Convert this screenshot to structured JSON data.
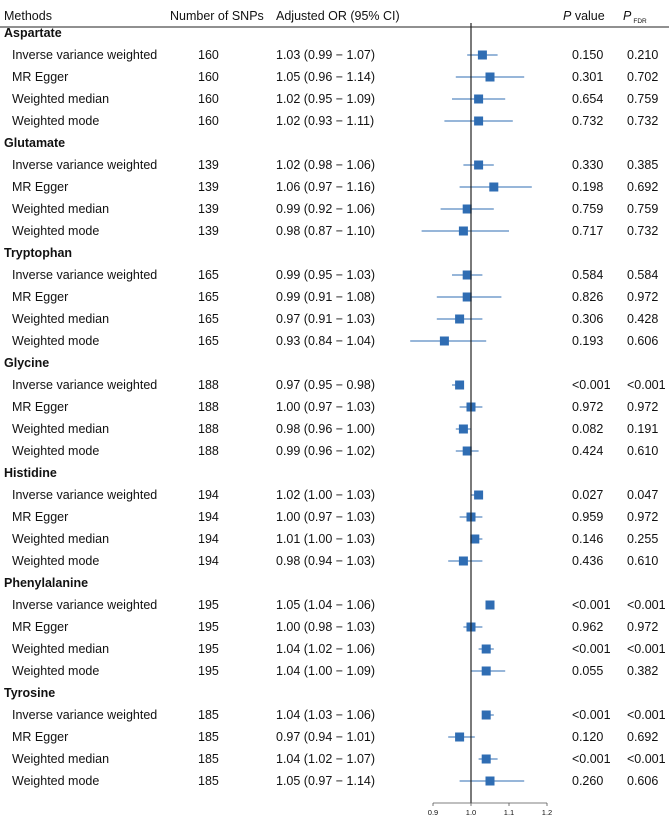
{
  "columns": {
    "methods": "Methods",
    "snps": "Number of SNPs",
    "or": "Adjusted OR (95% CI)",
    "p_italic": "P",
    "p_rest": " value",
    "pfdr_main": "P",
    "pfdr_sub": "FDR"
  },
  "chart_data": {
    "type": "forest",
    "xlabel": "",
    "x_ticks": [
      0.9,
      1.0,
      1.1,
      1.2
    ],
    "x_tick_labels": [
      "0.9",
      "1.0",
      "1.1",
      "1.2"
    ],
    "xlim": [
      0.9,
      1.2
    ],
    "reference_line": 1.0,
    "groups": [
      {
        "name": "Aspartate",
        "rows": [
          {
            "method": "Inverse variance weighted",
            "snps": "160",
            "or_text": "1.03 (0.99 − 1.07)",
            "or": 1.03,
            "lo": 0.99,
            "hi": 1.07,
            "p": "0.150",
            "pfdr": "0.210"
          },
          {
            "method": "MR Egger",
            "snps": "160",
            "or_text": "1.05 (0.96 − 1.14)",
            "or": 1.05,
            "lo": 0.96,
            "hi": 1.14,
            "p": "0.301",
            "pfdr": "0.702"
          },
          {
            "method": "Weighted median",
            "snps": "160",
            "or_text": "1.02 (0.95 − 1.09)",
            "or": 1.02,
            "lo": 0.95,
            "hi": 1.09,
            "p": "0.654",
            "pfdr": "0.759"
          },
          {
            "method": "Weighted mode",
            "snps": "160",
            "or_text": "1.02 (0.93 − 1.11)",
            "or": 1.02,
            "lo": 0.93,
            "hi": 1.11,
            "p": "0.732",
            "pfdr": "0.732"
          }
        ]
      },
      {
        "name": "Glutamate",
        "rows": [
          {
            "method": "Inverse variance weighted",
            "snps": "139",
            "or_text": "1.02 (0.98 − 1.06)",
            "or": 1.02,
            "lo": 0.98,
            "hi": 1.06,
            "p": "0.330",
            "pfdr": "0.385"
          },
          {
            "method": "MR Egger",
            "snps": "139",
            "or_text": "1.06 (0.97 − 1.16)",
            "or": 1.06,
            "lo": 0.97,
            "hi": 1.16,
            "p": "0.198",
            "pfdr": "0.692"
          },
          {
            "method": "Weighted median",
            "snps": "139",
            "or_text": "0.99 (0.92 − 1.06)",
            "or": 0.99,
            "lo": 0.92,
            "hi": 1.06,
            "p": "0.759",
            "pfdr": "0.759"
          },
          {
            "method": "Weighted mode",
            "snps": "139",
            "or_text": "0.98 (0.87 − 1.10)",
            "or": 0.98,
            "lo": 0.87,
            "hi": 1.1,
            "p": "0.717",
            "pfdr": "0.732"
          }
        ]
      },
      {
        "name": "Tryptophan",
        "rows": [
          {
            "method": "Inverse variance weighted",
            "snps": "165",
            "or_text": "0.99 (0.95 − 1.03)",
            "or": 0.99,
            "lo": 0.95,
            "hi": 1.03,
            "p": "0.584",
            "pfdr": "0.584"
          },
          {
            "method": "MR Egger",
            "snps": "165",
            "or_text": "0.99 (0.91 − 1.08)",
            "or": 0.99,
            "lo": 0.91,
            "hi": 1.08,
            "p": "0.826",
            "pfdr": "0.972"
          },
          {
            "method": "Weighted median",
            "snps": "165",
            "or_text": "0.97 (0.91 − 1.03)",
            "or": 0.97,
            "lo": 0.91,
            "hi": 1.03,
            "p": "0.306",
            "pfdr": "0.428"
          },
          {
            "method": "Weighted mode",
            "snps": "165",
            "or_text": "0.93 (0.84 − 1.04)",
            "or": 0.93,
            "lo": 0.84,
            "hi": 1.04,
            "p": "0.193",
            "pfdr": "0.606"
          }
        ]
      },
      {
        "name": "Glycine",
        "rows": [
          {
            "method": "Inverse variance weighted",
            "snps": "188",
            "or_text": "0.97 (0.95 − 0.98)",
            "or": 0.97,
            "lo": 0.95,
            "hi": 0.98,
            "p": "<0.001",
            "pfdr": "<0.001"
          },
          {
            "method": "MR Egger",
            "snps": "188",
            "or_text": "1.00 (0.97 − 1.03)",
            "or": 1.0,
            "lo": 0.97,
            "hi": 1.03,
            "p": "0.972",
            "pfdr": "0.972"
          },
          {
            "method": "Weighted median",
            "snps": "188",
            "or_text": "0.98 (0.96 − 1.00)",
            "or": 0.98,
            "lo": 0.96,
            "hi": 1.0,
            "p": "0.082",
            "pfdr": "0.191"
          },
          {
            "method": "Weighted mode",
            "snps": "188",
            "or_text": "0.99 (0.96 − 1.02)",
            "or": 0.99,
            "lo": 0.96,
            "hi": 1.02,
            "p": "0.424",
            "pfdr": "0.610"
          }
        ]
      },
      {
        "name": "Histidine",
        "rows": [
          {
            "method": "Inverse variance weighted",
            "snps": "194",
            "or_text": "1.02 (1.00 − 1.03)",
            "or": 1.02,
            "lo": 1.0,
            "hi": 1.03,
            "p": "0.027",
            "pfdr": "0.047"
          },
          {
            "method": "MR Egger",
            "snps": "194",
            "or_text": "1.00 (0.97 − 1.03)",
            "or": 1.0,
            "lo": 0.97,
            "hi": 1.03,
            "p": "0.959",
            "pfdr": "0.972"
          },
          {
            "method": "Weighted median",
            "snps": "194",
            "or_text": "1.01 (1.00 − 1.03)",
            "or": 1.01,
            "lo": 1.0,
            "hi": 1.03,
            "p": "0.146",
            "pfdr": "0.255"
          },
          {
            "method": "Weighted mode",
            "snps": "194",
            "or_text": "0.98 (0.94 − 1.03)",
            "or": 0.98,
            "lo": 0.94,
            "hi": 1.03,
            "p": "0.436",
            "pfdr": "0.610"
          }
        ]
      },
      {
        "name": "Phenylalanine",
        "rows": [
          {
            "method": "Inverse variance weighted",
            "snps": "195",
            "or_text": "1.05 (1.04 − 1.06)",
            "or": 1.05,
            "lo": 1.04,
            "hi": 1.06,
            "p": "<0.001",
            "pfdr": "<0.001"
          },
          {
            "method": "MR Egger",
            "snps": "195",
            "or_text": "1.00 (0.98 − 1.03)",
            "or": 1.0,
            "lo": 0.98,
            "hi": 1.03,
            "p": "0.962",
            "pfdr": "0.972"
          },
          {
            "method": "Weighted median",
            "snps": "195",
            "or_text": "1.04 (1.02 − 1.06)",
            "or": 1.04,
            "lo": 1.02,
            "hi": 1.06,
            "p": "<0.001",
            "pfdr": "<0.001"
          },
          {
            "method": "Weighted mode",
            "snps": "195",
            "or_text": "1.04 (1.00 − 1.09)",
            "or": 1.04,
            "lo": 1.0,
            "hi": 1.09,
            "p": "0.055",
            "pfdr": "0.382"
          }
        ]
      },
      {
        "name": "Tyrosine",
        "rows": [
          {
            "method": "Inverse variance weighted",
            "snps": "185",
            "or_text": "1.04 (1.03 − 1.06)",
            "or": 1.04,
            "lo": 1.03,
            "hi": 1.06,
            "p": "<0.001",
            "pfdr": "<0.001"
          },
          {
            "method": "MR Egger",
            "snps": "185",
            "or_text": "0.97 (0.94 − 1.01)",
            "or": 0.97,
            "lo": 0.94,
            "hi": 1.01,
            "p": "0.120",
            "pfdr": "0.692"
          },
          {
            "method": "Weighted median",
            "snps": "185",
            "or_text": "1.04 (1.02 − 1.07)",
            "or": 1.04,
            "lo": 1.02,
            "hi": 1.07,
            "p": "<0.001",
            "pfdr": "<0.001"
          },
          {
            "method": "Weighted mode",
            "snps": "185",
            "or_text": "1.05 (0.97 − 1.14)",
            "or": 1.05,
            "lo": 0.97,
            "hi": 1.14,
            "p": "0.260",
            "pfdr": "0.606"
          }
        ]
      }
    ]
  },
  "colors": {
    "marker": "#2f6db3",
    "line": "#555555",
    "text": "#111111"
  }
}
